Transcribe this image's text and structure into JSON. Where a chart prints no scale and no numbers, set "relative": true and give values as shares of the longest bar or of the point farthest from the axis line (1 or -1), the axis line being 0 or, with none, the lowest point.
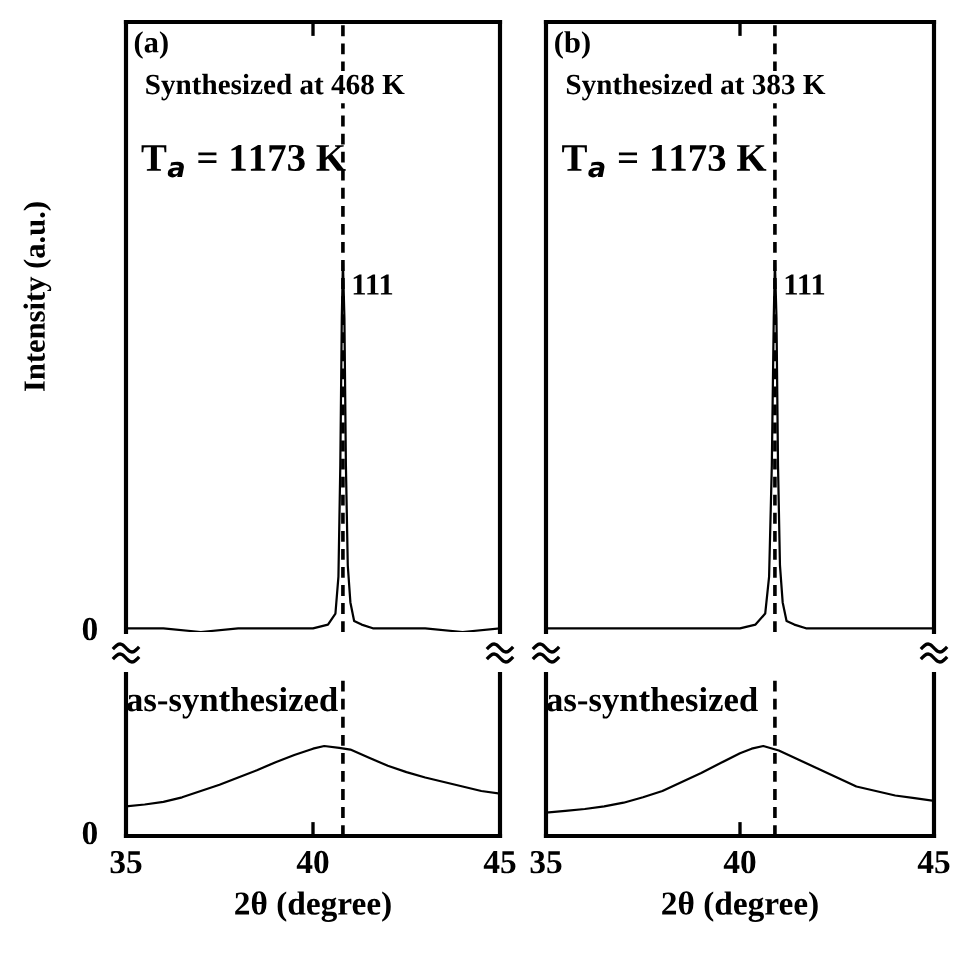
{
  "chart_data": [
    {
      "type": "line",
      "title": "(a)",
      "subtitle": "Synthesized at 468 K",
      "ylabel": "Intensity (a.u.)",
      "relative": true,
      "xlim": [
        35,
        45
      ],
      "xticks": [
        {
          "value": 40,
          "label": null
        }
      ],
      "tick_labels": false,
      "series": [
        {
          "color": "#000000",
          "x": [
            35,
            36,
            37,
            38,
            39,
            40,
            40.4,
            40.6,
            40.68,
            40.73,
            40.77,
            40.8,
            40.84,
            40.88,
            40.93,
            41.0,
            41.1,
            41.3,
            41.6,
            42,
            43,
            44,
            45
          ],
          "values": [
            0.01,
            0.01,
            0.0,
            0.01,
            0.01,
            0.01,
            0.02,
            0.05,
            0.15,
            0.45,
            0.85,
            1,
            0.85,
            0.45,
            0.18,
            0.08,
            0.03,
            0.02,
            0.01,
            0.01,
            0.01,
            0.0,
            0.01
          ]
        }
      ],
      "ref_lines": [
        {
          "axis": "x",
          "value": 40.8,
          "color": "#000000",
          "line_style": "dashed"
        }
      ],
      "annotations": [
        "T$_{a}$ = 1173 K",
        {
          "text": "111",
          "x": 40.8,
          "y": 1
        },
        {
          "text": "0",
          "x": 35,
          "y": 0
        }
      ]
    },
    {
      "type": "line",
      "xlabel": "2θ (degree)",
      "relative": true,
      "xlim": [
        35,
        45
      ],
      "xticks": [
        35,
        40,
        45
      ],
      "tick_labels": "x",
      "series": [
        {
          "color": "#000000",
          "x": [
            35,
            35.5,
            36,
            36.5,
            37,
            37.5,
            38,
            38.5,
            39,
            39.5,
            40,
            40.3,
            40.7,
            41,
            41.5,
            42,
            42.5,
            43,
            43.5,
            44,
            44.5,
            45
          ],
          "values": [
            0.33,
            0.35,
            0.38,
            0.43,
            0.5,
            0.57,
            0.65,
            0.73,
            0.82,
            0.9,
            0.97,
            1,
            0.98,
            0.96,
            0.87,
            0.78,
            0.71,
            0.65,
            0.6,
            0.55,
            0.5,
            0.47
          ]
        }
      ],
      "ref_lines": [
        {
          "axis": "x",
          "value": 40.8,
          "color": "#000000",
          "line_style": "dashed"
        }
      ],
      "annotations": [
        "as-synthesized",
        "0"
      ]
    },
    {
      "type": "line",
      "title": "(b)",
      "subtitle": "Synthesized at 383 K",
      "relative": true,
      "xlim": [
        35,
        45
      ],
      "xticks": [
        {
          "value": 40,
          "label": null
        }
      ],
      "tick_labels": false,
      "series": [
        {
          "color": "#000000",
          "x": [
            35,
            36,
            37,
            38,
            39,
            40,
            40.4,
            40.65,
            40.75,
            40.82,
            40.87,
            40.9,
            40.94,
            40.98,
            41.03,
            41.1,
            41.2,
            41.4,
            41.7,
            42,
            43,
            44,
            45
          ],
          "values": [
            0.01,
            0.01,
            0.01,
            0.01,
            0.01,
            0.01,
            0.02,
            0.05,
            0.15,
            0.45,
            0.85,
            1,
            0.85,
            0.45,
            0.18,
            0.08,
            0.03,
            0.02,
            0.01,
            0.01,
            0.01,
            0.01,
            0.01
          ]
        }
      ],
      "ref_lines": [
        {
          "axis": "x",
          "value": 40.9,
          "color": "#000000",
          "line_style": "dashed"
        }
      ],
      "annotations": [
        "T$_{a}$ = 1173 K",
        {
          "text": "111",
          "x": 40.9,
          "y": 1
        }
      ]
    },
    {
      "type": "line",
      "xlabel": "2θ (degree)",
      "relative": true,
      "xlim": [
        35,
        45
      ],
      "xticks": [
        35,
        40,
        45
      ],
      "tick_labels": "x",
      "series": [
        {
          "color": "#000000",
          "x": [
            35,
            35.5,
            36,
            36.5,
            37,
            37.5,
            38,
            38.5,
            39,
            39.5,
            40,
            40.3,
            40.6,
            41,
            41.5,
            42,
            42.5,
            43,
            43.5,
            44,
            44.5,
            45
          ],
          "values": [
            0.26,
            0.28,
            0.3,
            0.33,
            0.37,
            0.43,
            0.5,
            0.6,
            0.7,
            0.81,
            0.92,
            0.97,
            1,
            0.95,
            0.85,
            0.75,
            0.65,
            0.55,
            0.5,
            0.45,
            0.42,
            0.39
          ]
        }
      ],
      "ref_lines": [
        {
          "axis": "x",
          "value": 40.9,
          "color": "#000000",
          "line_style": "dashed"
        }
      ],
      "annotations": [
        "as-synthesized"
      ]
    }
  ]
}
